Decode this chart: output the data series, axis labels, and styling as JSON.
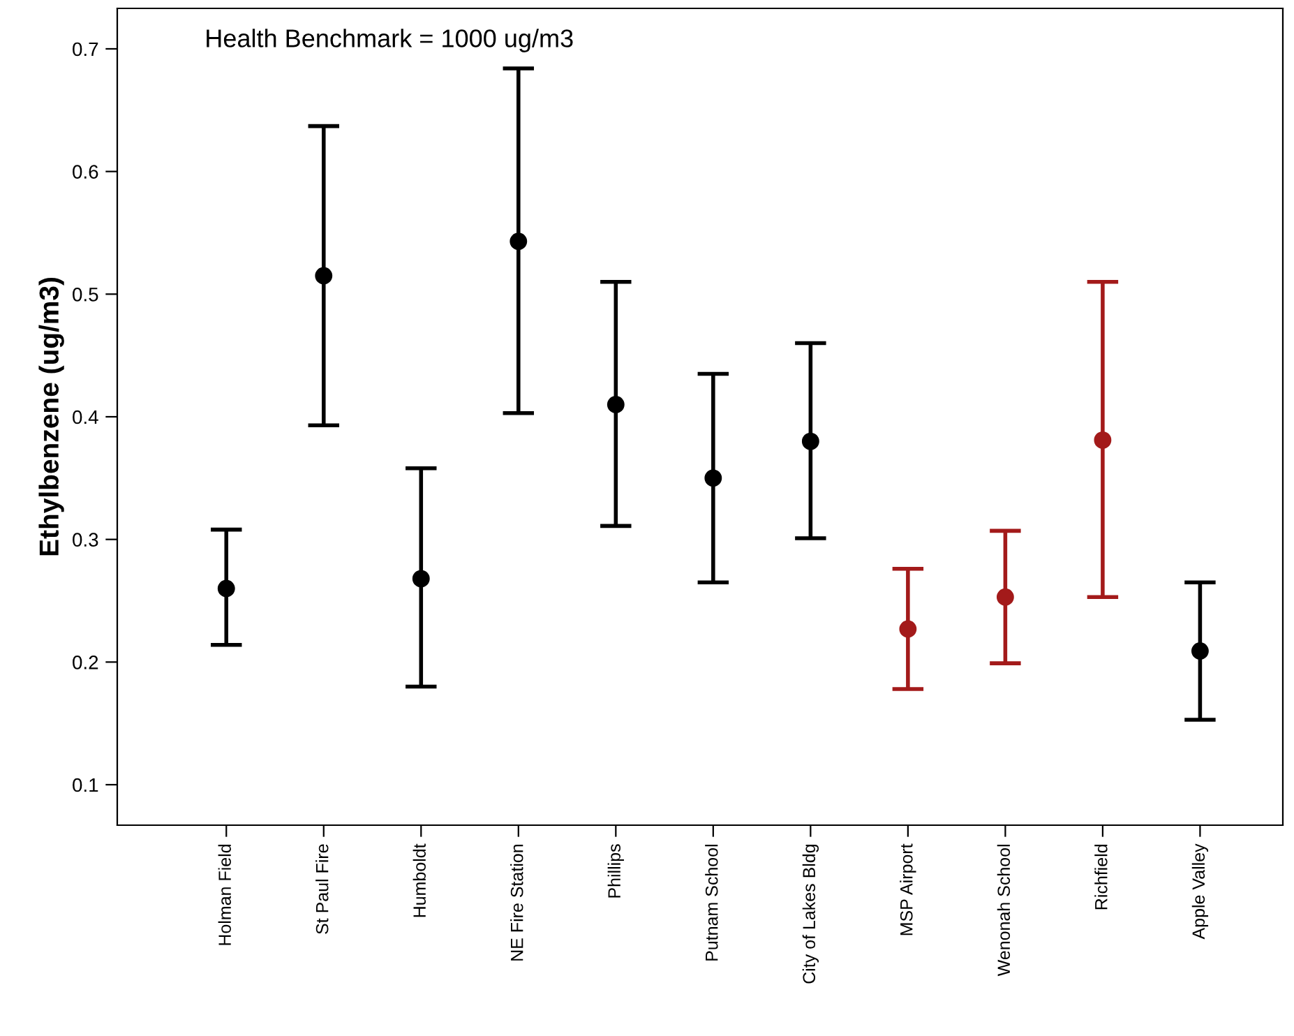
{
  "chart_data": {
    "type": "scatter",
    "ylabel": "Ethylbenzene (ug/m3)",
    "annotations": [
      "Health Benchmark = 1000 ug/m3"
    ],
    "categories": [
      "Holman Field",
      "St Paul Fire",
      "Humboldt",
      "NE Fire Station",
      "Phillips",
      "Putnam School",
      "City of Lakes Bldg",
      "MSP Airport",
      "Wenonah School",
      "Richfield",
      "Apple Valley"
    ],
    "values": [
      0.26,
      0.515,
      0.268,
      0.543,
      0.41,
      0.35,
      0.38,
      0.227,
      0.253,
      0.381,
      0.209
    ],
    "errors": [
      [
        0.214,
        0.308
      ],
      [
        0.393,
        0.637
      ],
      [
        0.18,
        0.358
      ],
      [
        0.403,
        0.684
      ],
      [
        0.311,
        0.51
      ],
      [
        0.265,
        0.435
      ],
      [
        0.301,
        0.46
      ],
      [
        0.178,
        0.276
      ],
      [
        0.199,
        0.307
      ],
      [
        0.253,
        0.51
      ],
      [
        0.153,
        0.265
      ]
    ],
    "colors": [
      "#000000",
      "#000000",
      "#000000",
      "#000000",
      "#000000",
      "#000000",
      "#000000",
      "#a31a1a",
      "#a31a1a",
      "#a31a1a",
      "#000000"
    ],
    "ylim": [
      0.067,
      0.733
    ],
    "yticks": [
      0.1,
      0.2,
      0.3,
      0.4,
      0.5,
      0.6,
      0.7
    ],
    "marker": "circle",
    "grid": false,
    "legend": false
  }
}
